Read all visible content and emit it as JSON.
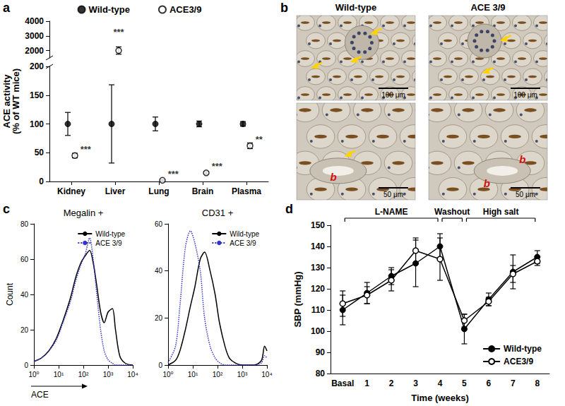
{
  "chart_data": [
    {
      "panel": "a",
      "type": "scatter",
      "ylabel": "ACE activity\n(% of WT mice)",
      "categories": [
        "Kidney",
        "Liver",
        "Lung",
        "Brain",
        "Plasma"
      ],
      "ylim_segments": [
        [
          0,
          200
        ],
        [
          1500,
          4000
        ]
      ],
      "yticks_segments": [
        [
          0,
          50,
          100,
          150,
          200
        ],
        [
          2000,
          3000,
          4000
        ]
      ],
      "legend": "top",
      "grid": false,
      "series": [
        {
          "name": "Wild-type",
          "color": "#000000",
          "marker": "filled_circle",
          "values": [
            100,
            100,
            100,
            100,
            100
          ],
          "errors": [
            20,
            68,
            12,
            5,
            4
          ]
        },
        {
          "name": "ACE3/9",
          "color": "#000000",
          "marker": "open_circle",
          "values": [
            45,
            2000,
            2,
            15,
            62
          ],
          "errors": [
            4,
            250,
            1,
            2,
            5
          ],
          "annotations": [
            "***",
            "***",
            "***",
            "***",
            "**"
          ]
        }
      ]
    },
    {
      "panel": "c",
      "type": "line",
      "log": "x",
      "xlim": [
        1,
        10000
      ],
      "xticks": [
        {
          "value": 1,
          "label": "10⁰"
        },
        {
          "value": 10,
          "label": "10¹"
        },
        {
          "value": 100,
          "label": "10²"
        },
        {
          "value": 1000,
          "label": "10³"
        },
        {
          "value": 10000,
          "label": "10⁴"
        }
      ],
      "legend": "upper right",
      "grid": false,
      "subplots": [
        {
          "title": "Megalin +",
          "xlabel": "ACE",
          "ylabel": "Count",
          "ylim": [
            0,
            80
          ],
          "yticks": [
            0,
            20,
            40,
            60,
            80
          ],
          "x": [
            1,
            2,
            4,
            8,
            15,
            30,
            50,
            80,
            120,
            180,
            250,
            350,
            500,
            700,
            1000,
            1500,
            2000,
            3000,
            5000,
            10000
          ],
          "series": [
            {
              "name": "Wild-type",
              "color": "#000000",
              "line_style": "solid",
              "values": [
                2,
                4,
                8,
                15,
                25,
                38,
                50,
                58,
                62,
                65,
                58,
                45,
                30,
                24,
                30,
                32,
                20,
                5,
                1,
                0
              ]
            },
            {
              "name": "ACE 3/9",
              "color": "#3333cc",
              "line_style": "dotted",
              "values": [
                2,
                4,
                8,
                14,
                24,
                36,
                48,
                57,
                63,
                72,
                60,
                40,
                20,
                8,
                3,
                1,
                0,
                0,
                0,
                0
              ]
            }
          ]
        },
        {
          "title": "CD31 +",
          "ylim": [
            0,
            60
          ],
          "yticks": [
            0,
            20,
            40,
            60
          ],
          "x": [
            1,
            2,
            3,
            5,
            8,
            12,
            20,
            30,
            50,
            80,
            120,
            200,
            300,
            500,
            1000,
            3000,
            6000,
            8000,
            10000
          ],
          "series": [
            {
              "name": "Wild-type",
              "color": "#000000",
              "line_style": "solid",
              "values": [
                0,
                2,
                6,
                15,
                25,
                33,
                45,
                48,
                40,
                30,
                18,
                8,
                3,
                1,
                0,
                0,
                2,
                8,
                6
              ]
            },
            {
              "name": "ACE 3/9",
              "color": "#3333cc",
              "line_style": "dotted",
              "values": [
                1,
                8,
                25,
                50,
                57,
                52,
                40,
                20,
                8,
                3,
                1,
                0,
                0,
                0,
                0,
                0,
                1,
                4,
                3
              ]
            }
          ]
        }
      ]
    },
    {
      "panel": "d",
      "type": "line",
      "xlabel": "Time (weeks)",
      "ylabel": "SBP (mmHg)",
      "categories": [
        "Basal",
        "1",
        "2",
        "3",
        "4",
        "5",
        "6",
        "7",
        "8"
      ],
      "ylim": [
        80,
        150
      ],
      "yticks": [
        80,
        90,
        100,
        110,
        120,
        130,
        140,
        150
      ],
      "legend": "lower right",
      "grid": false,
      "annotations": [
        {
          "text": "L-NAME",
          "from": "Basal",
          "to": "4"
        },
        {
          "text": "Washout",
          "from": "4",
          "to": "5"
        },
        {
          "text": "High salt",
          "from": "5",
          "to": "8"
        }
      ],
      "series": [
        {
          "name": "Wild-type",
          "color": "#000000",
          "marker": "filled_circle",
          "line_style": "solid",
          "values": [
            110,
            118,
            126,
            132,
            140,
            101,
            115,
            128,
            135
          ],
          "errors": [
            7,
            5,
            4,
            11,
            6,
            7,
            3,
            8,
            3
          ]
        },
        {
          "name": "ACE3/9",
          "color": "#000000",
          "marker": "open_circle",
          "line_style": "solid",
          "values": [
            113,
            117,
            124,
            138,
            134,
            105,
            114,
            127,
            133
          ],
          "errors": [
            6,
            4,
            5,
            6,
            10,
            3,
            2,
            4,
            2
          ]
        }
      ]
    }
  ],
  "micrographs": {
    "panel": "b",
    "columns": [
      "Wild-type",
      "ACE 3/9"
    ],
    "rows": [
      [
        {
          "scale_bar": "100 μm",
          "labels": []
        },
        {
          "scale_bar": "100 μm",
          "labels": []
        }
      ],
      [
        {
          "scale_bar": "50 μm",
          "labels": [
            "b"
          ]
        },
        {
          "scale_bar": "50 μm",
          "labels": [
            "b",
            "b"
          ]
        }
      ]
    ]
  }
}
